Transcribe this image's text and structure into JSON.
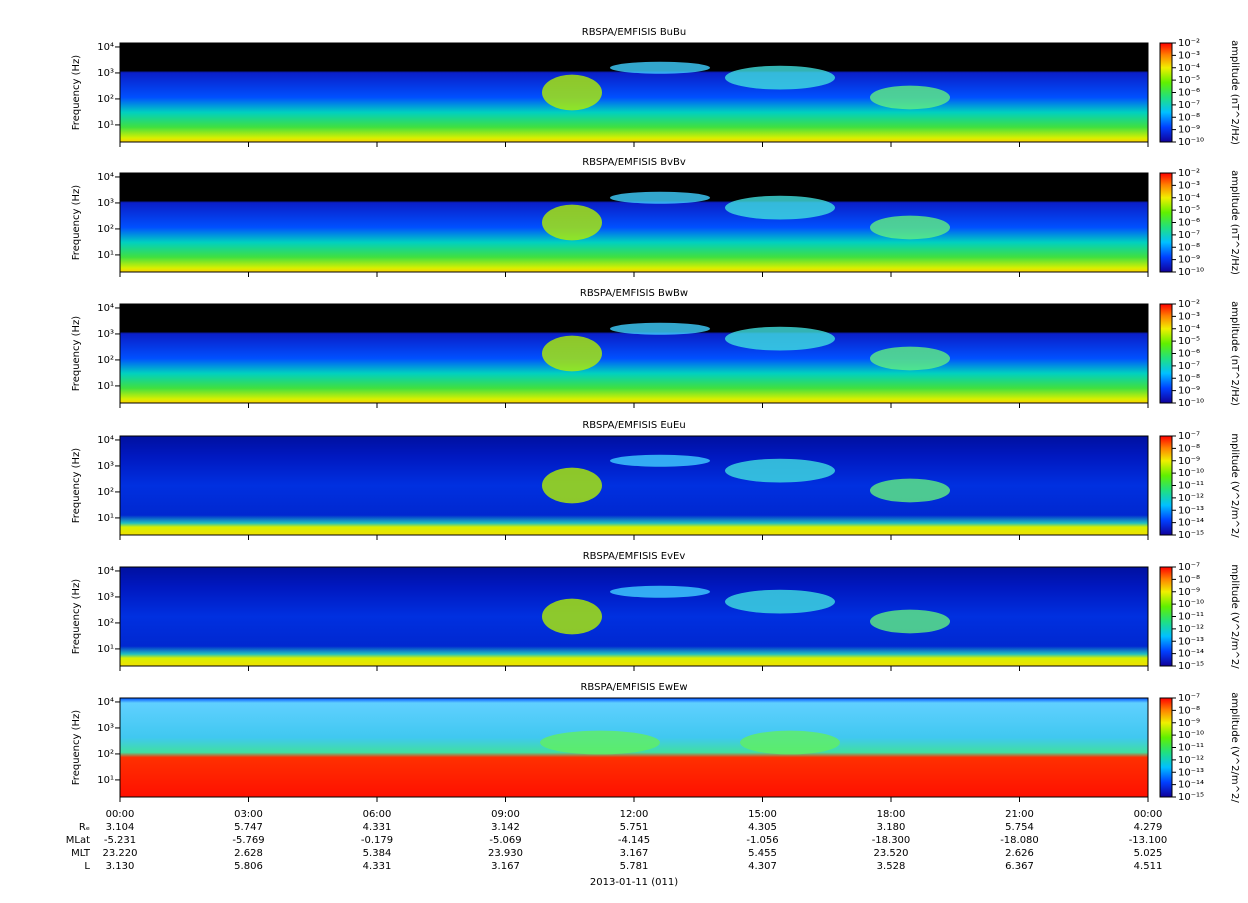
{
  "chart_data": [
    {
      "type": "spectrogram",
      "title": "RBSPA/EMFISIS  BuBu",
      "ylabel": "Frequency (Hz)",
      "log_y": true,
      "ylim": [
        2.2,
        14200
      ],
      "yticks": [
        {
          "value": 10,
          "label": "10¹"
        },
        {
          "value": 100,
          "label": "10²"
        },
        {
          "value": 1000,
          "label": "10³"
        },
        {
          "value": 10000,
          "label": "10⁴"
        }
      ],
      "colorbar": {
        "label": "amplitude (nT^2/Hz)",
        "clim": [
          1e-10,
          0.01
        ],
        "ticks": [
          {
            "value": 0.01,
            "label": "10⁻²"
          },
          {
            "value": 0.001,
            "label": "10⁻³"
          },
          {
            "value": 0.0001,
            "label": "10⁻⁴"
          },
          {
            "value": 1e-05,
            "label": "10⁻⁵"
          },
          {
            "value": 1e-06,
            "label": "10⁻⁶"
          },
          {
            "value": 1e-07,
            "label": "10⁻⁷"
          },
          {
            "value": 1e-08,
            "label": "10⁻⁸"
          },
          {
            "value": 1e-09,
            "label": "10⁻⁹"
          },
          {
            "value": 1e-10,
            "label": "10⁻¹⁰"
          }
        ]
      }
    },
    {
      "type": "spectrogram",
      "title": "RBSPA/EMFISIS  BvBv",
      "ylabel": "Frequency (Hz)",
      "log_y": true,
      "ylim": [
        2.2,
        14200
      ],
      "yticks": [
        {
          "value": 10,
          "label": "10¹"
        },
        {
          "value": 100,
          "label": "10²"
        },
        {
          "value": 1000,
          "label": "10³"
        },
        {
          "value": 10000,
          "label": "10⁴"
        }
      ],
      "colorbar": {
        "label": "amplitude (nT^2/Hz)",
        "clim": [
          1e-10,
          0.01
        ],
        "ticks": [
          {
            "value": 0.01,
            "label": "10⁻²"
          },
          {
            "value": 0.001,
            "label": "10⁻³"
          },
          {
            "value": 0.0001,
            "label": "10⁻⁴"
          },
          {
            "value": 1e-05,
            "label": "10⁻⁵"
          },
          {
            "value": 1e-06,
            "label": "10⁻⁶"
          },
          {
            "value": 1e-07,
            "label": "10⁻⁷"
          },
          {
            "value": 1e-08,
            "label": "10⁻⁸"
          },
          {
            "value": 1e-09,
            "label": "10⁻⁹"
          },
          {
            "value": 1e-10,
            "label": "10⁻¹⁰"
          }
        ]
      }
    },
    {
      "type": "spectrogram",
      "title": "RBSPA/EMFISIS  BwBw",
      "ylabel": "Frequency (Hz)",
      "log_y": true,
      "ylim": [
        2.2,
        14200
      ],
      "yticks": [
        {
          "value": 10,
          "label": "10¹"
        },
        {
          "value": 100,
          "label": "10²"
        },
        {
          "value": 1000,
          "label": "10³"
        },
        {
          "value": 10000,
          "label": "10⁴"
        }
      ],
      "colorbar": {
        "label": "amplitude (nT^2/Hz)",
        "clim": [
          1e-10,
          0.01
        ],
        "ticks": [
          {
            "value": 0.01,
            "label": "10⁻²"
          },
          {
            "value": 0.001,
            "label": "10⁻³"
          },
          {
            "value": 0.0001,
            "label": "10⁻⁴"
          },
          {
            "value": 1e-05,
            "label": "10⁻⁵"
          },
          {
            "value": 1e-06,
            "label": "10⁻⁶"
          },
          {
            "value": 1e-07,
            "label": "10⁻⁷"
          },
          {
            "value": 1e-08,
            "label": "10⁻⁸"
          },
          {
            "value": 1e-09,
            "label": "10⁻⁹"
          },
          {
            "value": 1e-10,
            "label": "10⁻¹⁰"
          }
        ]
      }
    },
    {
      "type": "spectrogram",
      "title": "RBSPA/EMFISIS  EuEu",
      "ylabel": "Frequency (Hz)",
      "log_y": true,
      "ylim": [
        2.2,
        14200
      ],
      "yticks": [
        {
          "value": 10,
          "label": "10¹"
        },
        {
          "value": 100,
          "label": "10²"
        },
        {
          "value": 1000,
          "label": "10³"
        },
        {
          "value": 10000,
          "label": "10⁴"
        }
      ],
      "colorbar": {
        "label": "mplitude (V^2/m^2/",
        "clim": [
          1e-15,
          1e-07
        ],
        "ticks": [
          {
            "value": 1e-07,
            "label": "10⁻⁷"
          },
          {
            "value": 1e-08,
            "label": "10⁻⁸"
          },
          {
            "value": 1e-09,
            "label": "10⁻⁹"
          },
          {
            "value": 1e-10,
            "label": "10⁻¹⁰"
          },
          {
            "value": 1e-11,
            "label": "10⁻¹¹"
          },
          {
            "value": 1e-12,
            "label": "10⁻¹²"
          },
          {
            "value": 1e-13,
            "label": "10⁻¹³"
          },
          {
            "value": 1e-14,
            "label": "10⁻¹⁴"
          },
          {
            "value": 1e-15,
            "label": "10⁻¹⁵"
          }
        ]
      }
    },
    {
      "type": "spectrogram",
      "title": "RBSPA/EMFISIS  EvEv",
      "ylabel": "Frequency (Hz)",
      "log_y": true,
      "ylim": [
        2.2,
        14200
      ],
      "yticks": [
        {
          "value": 10,
          "label": "10¹"
        },
        {
          "value": 100,
          "label": "10²"
        },
        {
          "value": 1000,
          "label": "10³"
        },
        {
          "value": 10000,
          "label": "10⁴"
        }
      ],
      "colorbar": {
        "label": "mplitude (V^2/m^2/",
        "clim": [
          1e-15,
          1e-07
        ],
        "ticks": [
          {
            "value": 1e-07,
            "label": "10⁻⁷"
          },
          {
            "value": 1e-08,
            "label": "10⁻⁸"
          },
          {
            "value": 1e-09,
            "label": "10⁻⁹"
          },
          {
            "value": 1e-10,
            "label": "10⁻¹⁰"
          },
          {
            "value": 1e-11,
            "label": "10⁻¹¹"
          },
          {
            "value": 1e-12,
            "label": "10⁻¹²"
          },
          {
            "value": 1e-13,
            "label": "10⁻¹³"
          },
          {
            "value": 1e-14,
            "label": "10⁻¹⁴"
          },
          {
            "value": 1e-15,
            "label": "10⁻¹⁵"
          }
        ]
      }
    },
    {
      "type": "spectrogram",
      "title": "RBSPA/EMFISIS  EwEw",
      "ylabel": "Frequency (Hz)",
      "log_y": true,
      "ylim": [
        2.2,
        14200
      ],
      "yticks": [
        {
          "value": 10,
          "label": "10¹"
        },
        {
          "value": 100,
          "label": "10²"
        },
        {
          "value": 1000,
          "label": "10³"
        },
        {
          "value": 10000,
          "label": "10⁴"
        }
      ],
      "colorbar": {
        "label": "amplitude (V^2/m^2/",
        "clim": [
          1e-15,
          1e-07
        ],
        "ticks": [
          {
            "value": 1e-07,
            "label": "10⁻⁷"
          },
          {
            "value": 1e-08,
            "label": "10⁻⁸"
          },
          {
            "value": 1e-09,
            "label": "10⁻⁹"
          },
          {
            "value": 1e-10,
            "label": "10⁻¹⁰"
          },
          {
            "value": 1e-11,
            "label": "10⁻¹¹"
          },
          {
            "value": 1e-12,
            "label": "10⁻¹²"
          },
          {
            "value": 1e-13,
            "label": "10⁻¹³"
          },
          {
            "value": 1e-14,
            "label": "10⁻¹⁴"
          },
          {
            "value": 1e-15,
            "label": "10⁻¹⁵"
          }
        ]
      }
    }
  ],
  "time_axis": {
    "xlim": [
      0,
      24
    ],
    "xticks": [
      {
        "value": 0,
        "label": "00:00"
      },
      {
        "value": 3,
        "label": "03:00"
      },
      {
        "value": 6,
        "label": "06:00"
      },
      {
        "value": 9,
        "label": "09:00"
      },
      {
        "value": 12,
        "label": "12:00"
      },
      {
        "value": 15,
        "label": "15:00"
      },
      {
        "value": 18,
        "label": "18:00"
      },
      {
        "value": 21,
        "label": "21:00"
      },
      {
        "value": 24,
        "label": "00:00"
      }
    ],
    "date": "2013-01-11 (011)"
  },
  "ephemeris": [
    {
      "label": "Rₑ",
      "values": [
        "3.104",
        "5.747",
        "4.331",
        "3.142",
        "5.751",
        "4.305",
        "3.180",
        "5.754",
        "4.279"
      ]
    },
    {
      "label": "MLat",
      "values": [
        "-5.231",
        "-5.769",
        "-0.179",
        "-5.069",
        "-4.145",
        "-1.056",
        "-18.300",
        "-18.080",
        "-13.100"
      ]
    },
    {
      "label": "MLT",
      "values": [
        "23.220",
        "2.628",
        "5.384",
        "23.930",
        "3.167",
        "5.455",
        "23.520",
        "2.626",
        "5.025"
      ]
    },
    {
      "label": "L",
      "values": [
        "3.130",
        "5.806",
        "4.331",
        "3.167",
        "5.781",
        "4.307",
        "3.528",
        "6.367",
        "4.511"
      ]
    }
  ]
}
